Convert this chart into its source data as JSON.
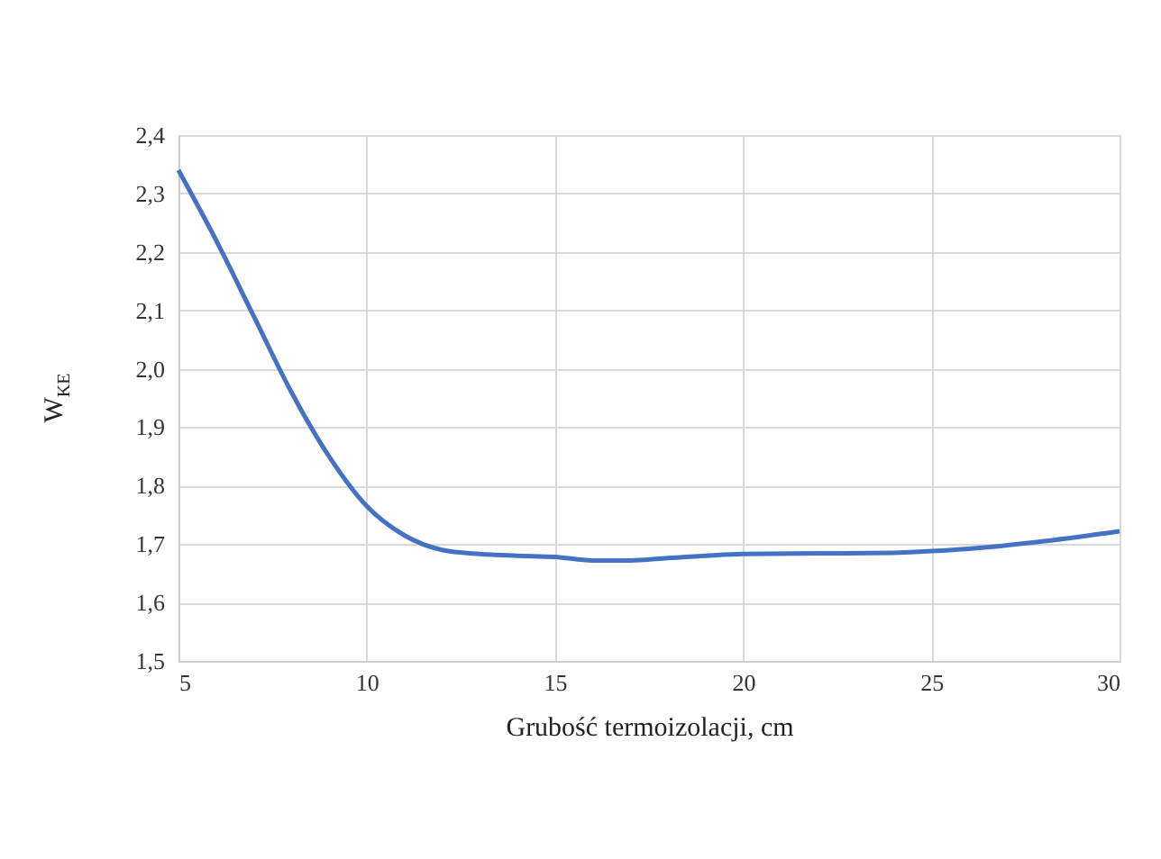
{
  "chart_data": {
    "type": "line",
    "xlabel": "Grubość termoizolacji, cm",
    "ylabel": "W$_{KE}$",
    "x": [
      5,
      6,
      7,
      8,
      9,
      10,
      11,
      12,
      13,
      14,
      15,
      16,
      17,
      18,
      19,
      20,
      22,
      24,
      25,
      26,
      28,
      30
    ],
    "series": [
      {
        "color": "#4472c4",
        "values": [
          2.34,
          2.22,
          2.09,
          1.96,
          1.85,
          1.765,
          1.715,
          1.69,
          1.683,
          1.68,
          1.678,
          1.672,
          1.672,
          1.676,
          1.68,
          1.683,
          1.684,
          1.685,
          1.688,
          1.692,
          1.705,
          1.722
        ]
      }
    ],
    "xlim": [
      5,
      30
    ],
    "xticks": [
      5,
      10,
      15,
      20,
      25,
      30
    ],
    "ylim": [
      1.5,
      2.4
    ],
    "yticks": [
      {
        "value": 1.5,
        "label": "1,5"
      },
      {
        "value": 1.6,
        "label": "1,6"
      },
      {
        "value": 1.7,
        "label": "1,7"
      },
      {
        "value": 1.8,
        "label": "1,8"
      },
      {
        "value": 1.9,
        "label": "1,9"
      },
      {
        "value": 2.0,
        "label": "2,0"
      },
      {
        "value": 2.1,
        "label": "2,1"
      },
      {
        "value": 2.2,
        "label": "2,2"
      },
      {
        "value": 2.3,
        "label": "2,3"
      },
      {
        "value": 2.4,
        "label": "2,4"
      }
    ],
    "grid": true,
    "marker": "none",
    "line_style": "solid"
  }
}
